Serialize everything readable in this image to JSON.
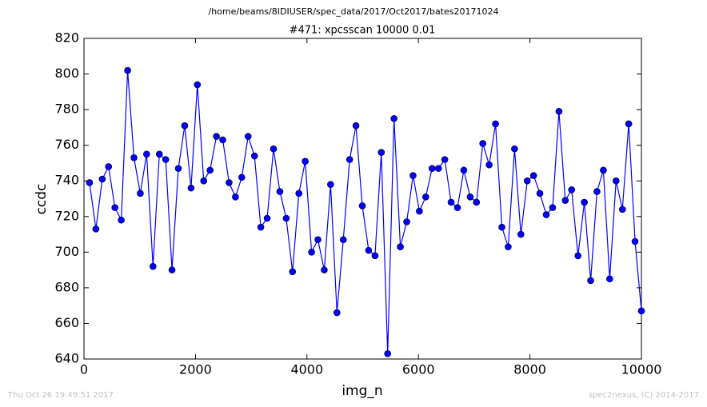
{
  "chart_data": {
    "type": "line",
    "title": "/home/beams/8IDIUSER/spec_data/2017/Oct2017/bates20171024",
    "subtitle": "#471: xpcsscan 10000 0.01",
    "xlabel": "img_n",
    "ylabel": "ccdc",
    "footer_left": "Thu Oct 26 19:49:51 2017",
    "footer_right": "spec2nexus, (C) 2014-2017",
    "color": "#0000ff",
    "x": [
      100,
      214,
      328,
      441,
      555,
      669,
      783,
      897,
      1010,
      1124,
      1238,
      1352,
      1466,
      1579,
      1693,
      1807,
      1921,
      2034,
      2148,
      2262,
      2376,
      2490,
      2603,
      2717,
      2831,
      2945,
      3059,
      3172,
      3286,
      3400,
      3514,
      3628,
      3741,
      3855,
      3969,
      4083,
      4197,
      4310,
      4424,
      4538,
      4652,
      4766,
      4879,
      4993,
      5107,
      5221,
      5334,
      5448,
      5562,
      5676,
      5790,
      5903,
      6017,
      6131,
      6245,
      6359,
      6472,
      6586,
      6700,
      6814,
      6928,
      7041,
      7155,
      7269,
      7383,
      7497,
      7610,
      7724,
      7838,
      7952,
      8066,
      8179,
      8293,
      8407,
      8521,
      8634,
      8748,
      8862,
      8976,
      9090,
      9203,
      9317,
      9431,
      9545,
      9659,
      9772,
      9886,
      10000
    ],
    "values": [
      739,
      713,
      741,
      748,
      725,
      718,
      802,
      753,
      733,
      755,
      692,
      755,
      752,
      690,
      747,
      771,
      736,
      794,
      740,
      746,
      765,
      763,
      739,
      731,
      742,
      765,
      754,
      714,
      719,
      758,
      734,
      719,
      689,
      733,
      751,
      700,
      707,
      690,
      738,
      666,
      707,
      752,
      771,
      726,
      701,
      698,
      756,
      643,
      775,
      703,
      717,
      743,
      723,
      731,
      747,
      747,
      752,
      728,
      725,
      746,
      731,
      728,
      761,
      749,
      772,
      714,
      703,
      758,
      710,
      740,
      743,
      733,
      721,
      725,
      779,
      729,
      735,
      698,
      728,
      684,
      734,
      746,
      685,
      740,
      724,
      772,
      706,
      667
    ],
    "xlim": [
      0,
      10000
    ],
    "xticks": [
      0,
      2000,
      4000,
      6000,
      8000,
      10000
    ],
    "ylim": [
      640,
      820
    ],
    "yticks": [
      640,
      660,
      680,
      700,
      720,
      740,
      760,
      780,
      800,
      820
    ]
  }
}
